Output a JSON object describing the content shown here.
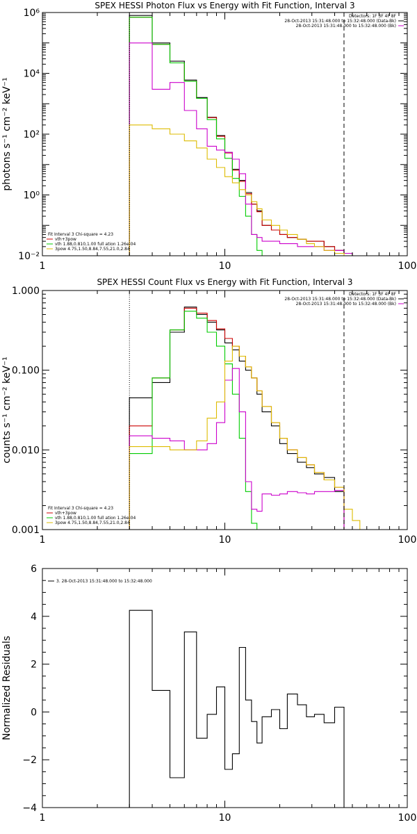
{
  "chart_data": [
    {
      "type": "line",
      "title": "SPEX HESSI Photon Flux vs Energy with Fit Function, Interval 3",
      "xlabel": "",
      "ylabel": "photons s⁻¹ cm⁻² keV⁻¹",
      "xscale": "log",
      "yscale": "log",
      "xlim": [
        1,
        100
      ],
      "ylim": [
        0.01,
        1000000
      ],
      "x_ticks": [
        "1",
        "10",
        "100"
      ],
      "y_ticks": [
        "10⁻²",
        "10⁰",
        "10²",
        "10⁴",
        "10⁶"
      ],
      "legend_right": [
        {
          "text": "Detectors: 1F 3F 4F 8F",
          "color": "#000000"
        },
        {
          "text": "28-Oct-2013 15:31:48.000 to 15:32:48.000 (Data-Bk)",
          "color": "#000000"
        },
        {
          "text": "28-Oct-2013 15:31:48.000 to 15:32:48.000 (Bk)",
          "color": "#cc00cc"
        }
      ],
      "legend_left": [
        {
          "text": "Fit Interval 3   Chi-square = 4.23",
          "color": "#000000"
        },
        {
          "text": "vth+3pow",
          "color": "#cc0000"
        },
        {
          "text": "vth 1.88,0.810,1.00  full ation 1.26e-04",
          "color": "#00cc00"
        },
        {
          "text": "3pow 4.75,1.50,8.84,7.55,21.0,2.84",
          "color": "#ddbb00"
        }
      ],
      "fit_range": [
        3,
        45
      ],
      "bin_edges": [
        3,
        4,
        5,
        6,
        7,
        8,
        9,
        10,
        11,
        12,
        13,
        14,
        15,
        16,
        18,
        20,
        22,
        25,
        28,
        31,
        35,
        40,
        45,
        50
      ],
      "series": [
        {
          "color": "#000000",
          "values": [
            800000,
            100000,
            25000,
            6000,
            1600,
            360,
            90,
            25,
            7,
            3,
            1.2,
            0.5,
            0.3,
            0.1,
            0.07,
            0.05,
            0.04,
            0.035,
            0.03,
            0.03,
            0.02,
            0.015,
            0.012
          ]
        },
        {
          "color": "#cc0000",
          "values": [
            700000,
            90000,
            22000,
            5500,
            1500,
            350,
            85,
            24,
            6.5,
            2.8,
            1.1,
            0.5,
            0.28,
            0.1,
            0.07,
            0.05,
            0.04,
            0.035,
            0.03,
            0.03,
            0.02,
            0.015,
            0.012
          ]
        },
        {
          "color": "#00cc00",
          "values": [
            700000,
            90000,
            22000,
            5500,
            1500,
            300,
            70,
            16,
            3.5,
            0.9,
            0.2,
            0.05,
            0.015,
            0.01
          ]
        },
        {
          "color": "#cc00cc",
          "values": [
            100000,
            3000,
            5000,
            600,
            150,
            40,
            30,
            25,
            15,
            5,
            0.5,
            0.05,
            0.04,
            0.03,
            0.03,
            0.025,
            0.025,
            0.02,
            0.02,
            0.02,
            0.015,
            0.015,
            0.012
          ]
        },
        {
          "color": "#ddbb00",
          "values": [
            200,
            150,
            100,
            60,
            35,
            15,
            8,
            4,
            2.5,
            1.5,
            1.0,
            0.6,
            0.35,
            0.15,
            0.1,
            0.07,
            0.05,
            0.035,
            0.025,
            0.02,
            0.015,
            0.012,
            0.01
          ]
        }
      ],
      "vlines": [
        {
          "x": 3,
          "style": "dotted",
          "color": "#000000"
        },
        {
          "x": 45,
          "style": "dashed",
          "color": "#000000"
        }
      ]
    },
    {
      "type": "line",
      "title": "SPEX HESSI Count Flux vs Energy with Fit Function, Interval 3",
      "xlabel": "",
      "ylabel": "counts s⁻¹ cm⁻² keV⁻¹",
      "xscale": "log",
      "yscale": "log",
      "xlim": [
        1,
        100
      ],
      "ylim": [
        0.001,
        1.0
      ],
      "x_ticks": [
        "1",
        "10",
        "100"
      ],
      "y_ticks": [
        "0.001",
        "0.010",
        "0.100",
        "1.000"
      ],
      "legend_right": [
        {
          "text": "Detectors: 1F 3F 4F 8F",
          "color": "#000000"
        },
        {
          "text": "28-Oct-2013 15:31:48.000 to 15:32:48.000 (Data-Bk)",
          "color": "#000000"
        },
        {
          "text": "28-Oct-2013 15:31:48.000 to 15:32:48.000 (Bk)",
          "color": "#cc00cc"
        }
      ],
      "legend_left": [
        {
          "text": "Fit Interval 3   Chi-square = 4.23",
          "color": "#000000"
        },
        {
          "text": "vth+3pow",
          "color": "#cc0000"
        },
        {
          "text": "vth 1.88,0.810,1.00  full ation 1.26e-04",
          "color": "#00cc00"
        },
        {
          "text": "3pow 4.75,1.50,8.84,7.55,21.0,2.84",
          "color": "#ddbb00"
        }
      ],
      "fit_range": [
        3,
        45
      ],
      "bin_edges": [
        3,
        4,
        5,
        6,
        7,
        8,
        9,
        10,
        11,
        12,
        13,
        14,
        15,
        16,
        18,
        20,
        22,
        25,
        28,
        31,
        35,
        40,
        45,
        50,
        55,
        60
      ],
      "series": [
        {
          "color": "#000000",
          "values": [
            0.045,
            0.07,
            0.3,
            0.62,
            0.5,
            0.4,
            0.32,
            0.22,
            0.18,
            0.13,
            0.1,
            0.08,
            0.05,
            0.03,
            0.02,
            0.012,
            0.009,
            0.007,
            0.006,
            0.005,
            0.0045,
            0.003
          ]
        },
        {
          "color": "#cc0000",
          "values": [
            0.02,
            0.08,
            0.32,
            0.6,
            0.52,
            0.42,
            0.33,
            0.25,
            0.2,
            0.15,
            0.11,
            0.08,
            0.055,
            0.035,
            0.022,
            0.014,
            0.01,
            0.008,
            0.0065,
            0.0052,
            0.0042,
            0.0034
          ]
        },
        {
          "color": "#00cc00",
          "values": [
            0.009,
            0.08,
            0.32,
            0.55,
            0.45,
            0.3,
            0.2,
            0.12,
            0.05,
            0.014,
            0.003,
            0.0012
          ]
        },
        {
          "color": "#cc00cc",
          "values": [
            0.015,
            0.014,
            0.013,
            0.01,
            0.01,
            0.012,
            0.022,
            0.075,
            0.105,
            0.03,
            0.004,
            0.0018,
            0.0017,
            0.0028,
            0.0027,
            0.0028,
            0.003,
            0.0029,
            0.0028,
            0.003,
            0.003,
            0.0031
          ]
        },
        {
          "color": "#ddbb00",
          "values": [
            0.011,
            0.011,
            0.01,
            0.01,
            0.013,
            0.025,
            0.04,
            0.13,
            0.2,
            0.15,
            0.11,
            0.08,
            0.055,
            0.035,
            0.022,
            0.014,
            0.01,
            0.008,
            0.0065,
            0.0052,
            0.0042,
            0.0034,
            0.0018,
            0.0013,
            0.001
          ]
        }
      ],
      "vlines": [
        {
          "x": 3,
          "style": "dotted",
          "color": "#000000"
        },
        {
          "x": 45,
          "style": "dashed",
          "color": "#000000"
        }
      ]
    },
    {
      "type": "line",
      "title": "",
      "xlabel": "",
      "ylabel": "Normalized Residuals",
      "xscale": "log",
      "yscale": "linear",
      "xlim": [
        1,
        100
      ],
      "ylim": [
        -4,
        6
      ],
      "x_ticks": [
        "1",
        "10",
        "100"
      ],
      "y_ticks": [
        "−4",
        "−2",
        "0",
        "2",
        "4",
        "6"
      ],
      "legend_left": [
        {
          "text": "3. 28-Oct-2013 15:31:48.000 to 15:32:48.000",
          "color": "#000000"
        }
      ],
      "bin_edges": [
        3,
        4,
        5,
        6,
        7,
        8,
        9,
        10,
        11,
        12,
        13,
        14,
        15,
        16,
        18,
        20,
        22,
        25,
        28,
        31,
        35,
        40,
        45
      ],
      "series": [
        {
          "color": "#000000",
          "values": [
            4.25,
            0.9,
            -2.75,
            3.35,
            -1.1,
            -0.1,
            1.05,
            -2.4,
            -1.75,
            2.7,
            0.5,
            -0.4,
            -1.3,
            -0.2,
            0.1,
            -0.7,
            0.75,
            0.3,
            -0.2,
            -0.1,
            -0.45,
            0.2
          ]
        }
      ]
    }
  ]
}
